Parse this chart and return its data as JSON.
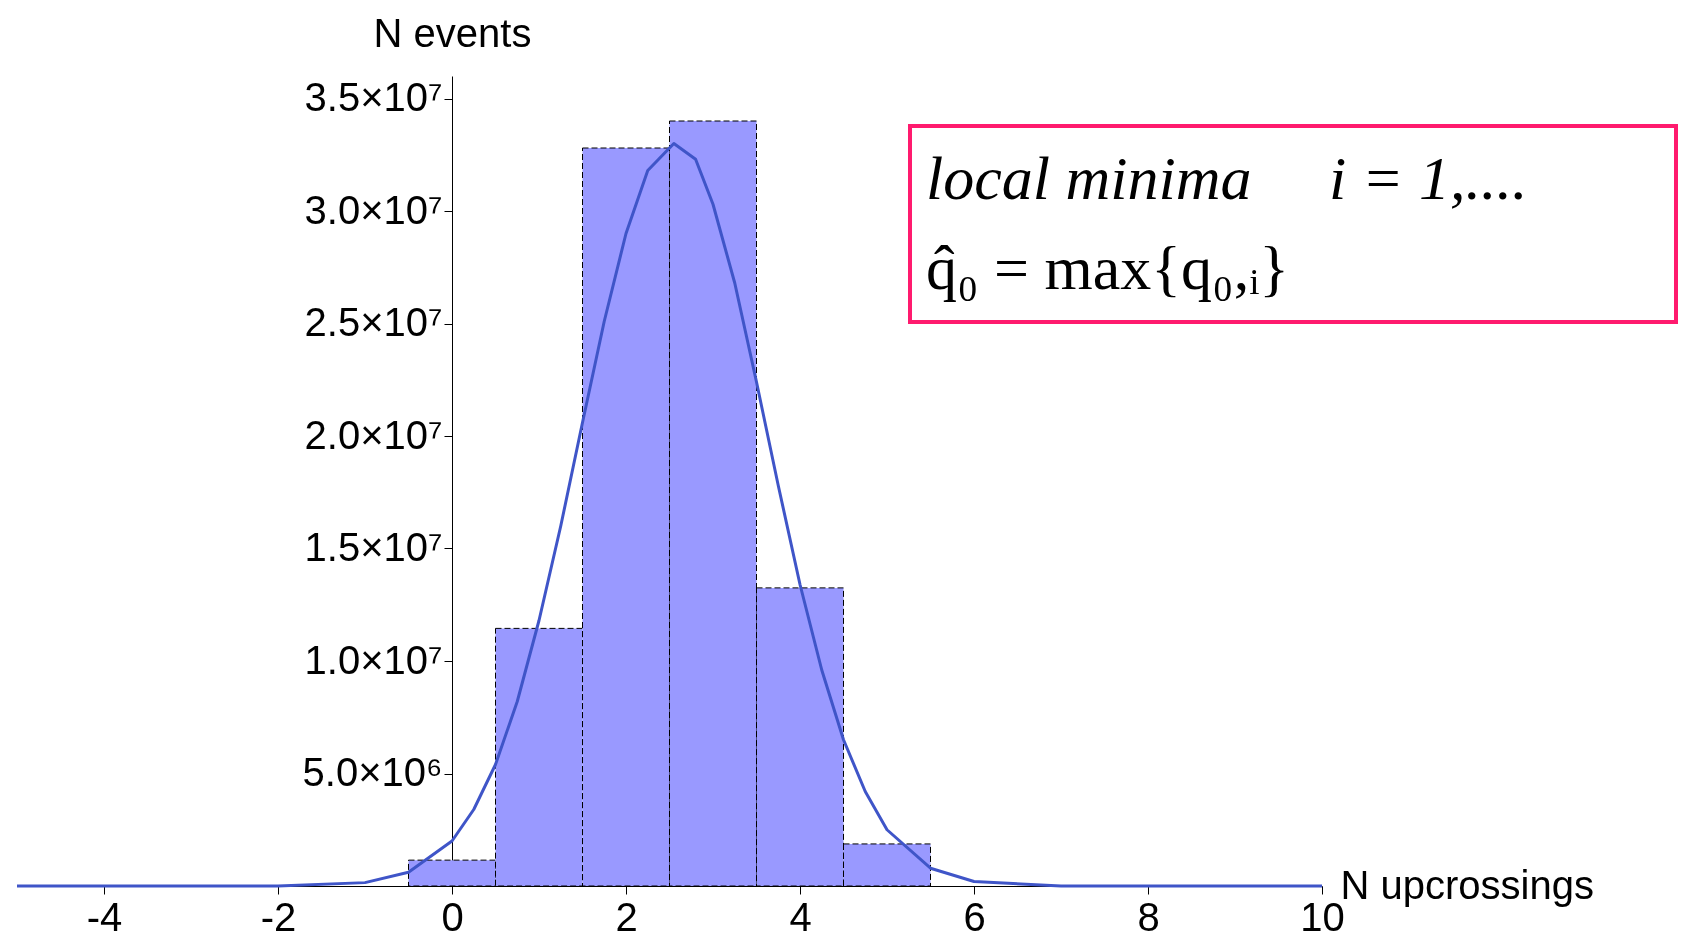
{
  "chart_data": {
    "type": "histogram",
    "xlabel": "N upcrossings",
    "ylabel": "N events",
    "bins": [
      -0.5,
      0.5,
      1.5,
      2.5,
      3.5,
      4.5,
      5.5
    ],
    "values": [
      1150000,
      11450000,
      32800000,
      34000000,
      13250000,
      1870000
    ],
    "color": "#9999ff",
    "series": [
      {
        "type": "line",
        "color": "#3f55c8",
        "x": [
          -5,
          -2,
          -1,
          -0.5,
          0,
          0.25,
          0.5,
          0.75,
          1,
          1.25,
          1.5,
          1.75,
          2,
          2.25,
          2.55,
          2.8,
          3,
          3.25,
          3.5,
          3.75,
          4,
          4.25,
          4.5,
          4.75,
          5,
          5.5,
          6,
          7,
          10
        ],
        "values": [
          0,
          0,
          150000,
          610000,
          2000000,
          3400000,
          5400000,
          8200000,
          11800000,
          16000000,
          20600000,
          25100000,
          29000000,
          31800000,
          33000000,
          32300000,
          30300000,
          26800000,
          22400000,
          17800000,
          13400000,
          9600000,
          6500000,
          4200000,
          2500000,
          790000,
          200000,
          0,
          0
        ]
      }
    ],
    "xlim": [
      -5,
      10
    ],
    "xticks": [
      -4,
      -2,
      0,
      2,
      4,
      6,
      8,
      10
    ],
    "ylim": [
      0,
      36000000
    ],
    "yticks": [
      {
        "value": 5000000,
        "label": "5.0×10⁶"
      },
      {
        "value": 10000000,
        "label": "1.0×10⁷"
      },
      {
        "value": 15000000,
        "label": "1.5×10⁷"
      },
      {
        "value": 20000000,
        "label": "2.0×10⁷"
      },
      {
        "value": 25000000,
        "label": "2.5×10⁷"
      },
      {
        "value": 30000000,
        "label": "3.0×10⁷"
      },
      {
        "value": 35000000,
        "label": "3.5×10⁷"
      }
    ],
    "annotations": [
      "local minima     i = 1,....",
      "q̂₀ = max{q₀,ᵢ}"
    ],
    "grid": false
  }
}
